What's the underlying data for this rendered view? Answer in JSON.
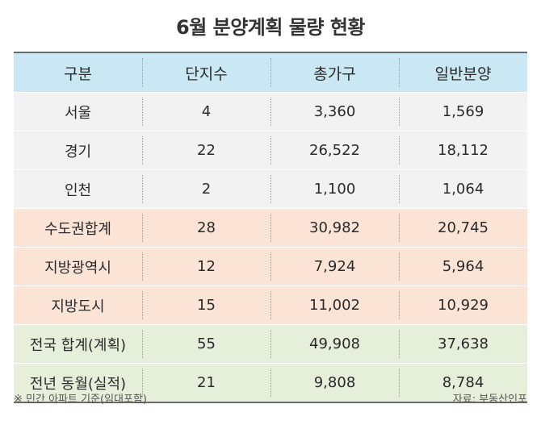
{
  "title": "6월 분양계획 물량 현황",
  "table": {
    "headers": [
      "구분",
      "단지수",
      "총가구",
      "일반분양"
    ],
    "rows": [
      {
        "group": "region",
        "cells": [
          "서울",
          "4",
          "3,360",
          "1,569"
        ]
      },
      {
        "group": "region",
        "cells": [
          "경기",
          "22",
          "26,522",
          "18,112"
        ]
      },
      {
        "group": "region",
        "cells": [
          "인천",
          "2",
          "1,100",
          "1,064"
        ]
      },
      {
        "group": "metro",
        "cells": [
          "수도권합계",
          "28",
          "30,982",
          "20,745"
        ]
      },
      {
        "group": "metro",
        "cells": [
          "지방광역시",
          "12",
          "7,924",
          "5,964"
        ]
      },
      {
        "group": "metro",
        "cells": [
          "지방도시",
          "15",
          "11,002",
          "10,929"
        ]
      },
      {
        "group": "total",
        "cells": [
          "전국 합계(계획)",
          "55",
          "49,908",
          "37,638"
        ]
      },
      {
        "group": "total",
        "cells": [
          "전년 동월(실적)",
          "21",
          "9,808",
          "8,784"
        ]
      }
    ]
  },
  "footer": {
    "note": "※ 민간 아파트 기준(임대포함)",
    "source": "자료: 부동산인포"
  },
  "colors": {
    "header_bg": "#c9e8f3",
    "region_bg": "#f2f2f2",
    "metro_bg": "#fbe4d6",
    "total_bg": "#e6efd9"
  }
}
